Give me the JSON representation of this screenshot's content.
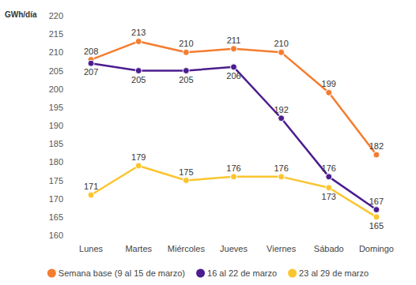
{
  "chart_data": {
    "type": "line",
    "ylabel": "GWh/día",
    "categories": [
      "Lunes",
      "Martes",
      "Miércoles",
      "Jueves",
      "Viernes",
      "Sábado",
      "Domingo"
    ],
    "series": [
      {
        "name": "Semana base (9 al 15 de marzo)",
        "color": "#f47c2f",
        "values": [
          208,
          213,
          210,
          211,
          210,
          199,
          182
        ]
      },
      {
        "name": "16 al 22 de marzo",
        "color": "#4b1d8f",
        "values": [
          207,
          205,
          205,
          206,
          192,
          176,
          167
        ]
      },
      {
        "name": "23 al 29 de marzo",
        "color": "#fbc52d",
        "values": [
          171,
          179,
          175,
          176,
          176,
          173,
          165
        ]
      }
    ],
    "ylim": [
      160,
      220
    ],
    "yticks": [
      160,
      165,
      170,
      175,
      180,
      185,
      190,
      195,
      200,
      205,
      210,
      215,
      220
    ],
    "grid": false,
    "legend": "bottom",
    "marker": "circle",
    "line_style": "solid",
    "data_labels": true
  }
}
